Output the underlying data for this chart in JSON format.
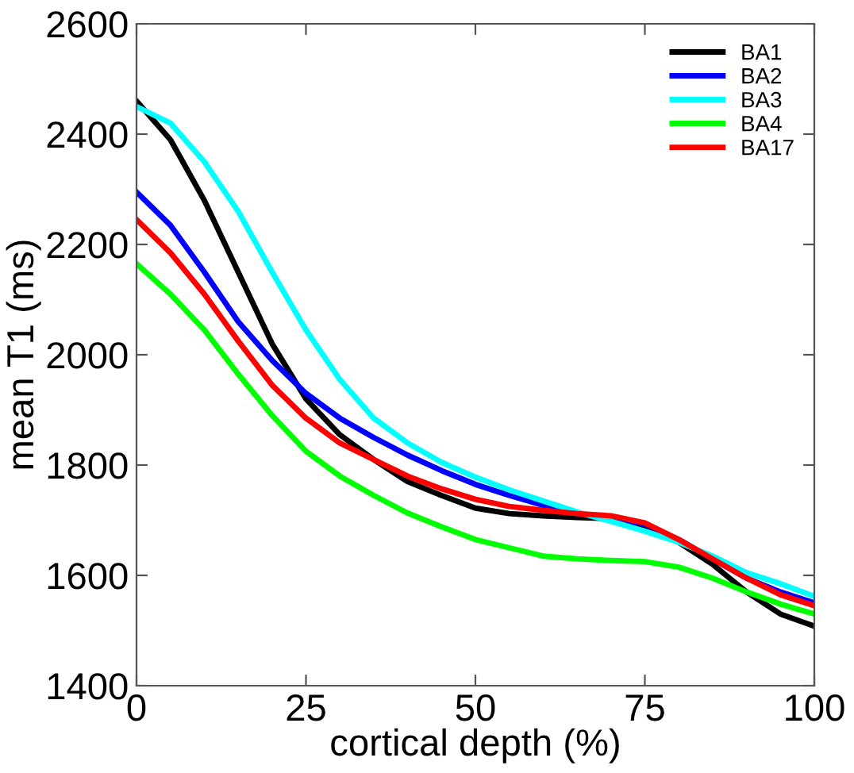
{
  "chart_data": {
    "type": "line",
    "xlabel": "cortical depth (%)",
    "ylabel": "mean T1 (ms)",
    "x": [
      0,
      5,
      10,
      15,
      20,
      25,
      30,
      35,
      40,
      45,
      50,
      55,
      60,
      65,
      70,
      75,
      80,
      85,
      90,
      95,
      100
    ],
    "xlim": [
      0,
      100
    ],
    "xticks": [
      0,
      25,
      50,
      75,
      100
    ],
    "ylim": [
      1400,
      2600
    ],
    "yticks": [
      1400,
      1600,
      1800,
      2000,
      2200,
      2400,
      2600
    ],
    "grid": false,
    "legend": "top right",
    "marker": "none",
    "line_style": "solid",
    "series": [
      {
        "name": "BA1",
        "color": "#000000",
        "values": [
          2460,
          2390,
          2280,
          2150,
          2020,
          1920,
          1855,
          1810,
          1770,
          1745,
          1722,
          1712,
          1708,
          1705,
          1703,
          1690,
          1660,
          1620,
          1570,
          1530,
          1508
        ]
      },
      {
        "name": "BA2",
        "color": "#0000ff",
        "values": [
          2295,
          2235,
          2150,
          2060,
          1990,
          1930,
          1885,
          1850,
          1818,
          1790,
          1765,
          1745,
          1727,
          1712,
          1705,
          1693,
          1665,
          1630,
          1595,
          1570,
          1550
        ]
      },
      {
        "name": "BA3",
        "color": "#00ffff",
        "values": [
          2450,
          2420,
          2350,
          2260,
          2150,
          2045,
          1955,
          1885,
          1840,
          1805,
          1778,
          1755,
          1735,
          1715,
          1698,
          1680,
          1660,
          1635,
          1605,
          1585,
          1562
        ]
      },
      {
        "name": "BA4",
        "color": "#00ff00",
        "values": [
          2165,
          2110,
          2045,
          1965,
          1890,
          1825,
          1780,
          1745,
          1713,
          1688,
          1665,
          1650,
          1635,
          1630,
          1627,
          1625,
          1615,
          1595,
          1570,
          1548,
          1530
        ]
      },
      {
        "name": "BA17",
        "color": "#ff0000",
        "values": [
          2245,
          2185,
          2110,
          2025,
          1945,
          1885,
          1840,
          1810,
          1780,
          1757,
          1738,
          1725,
          1718,
          1712,
          1708,
          1695,
          1665,
          1630,
          1595,
          1565,
          1545
        ]
      }
    ]
  }
}
